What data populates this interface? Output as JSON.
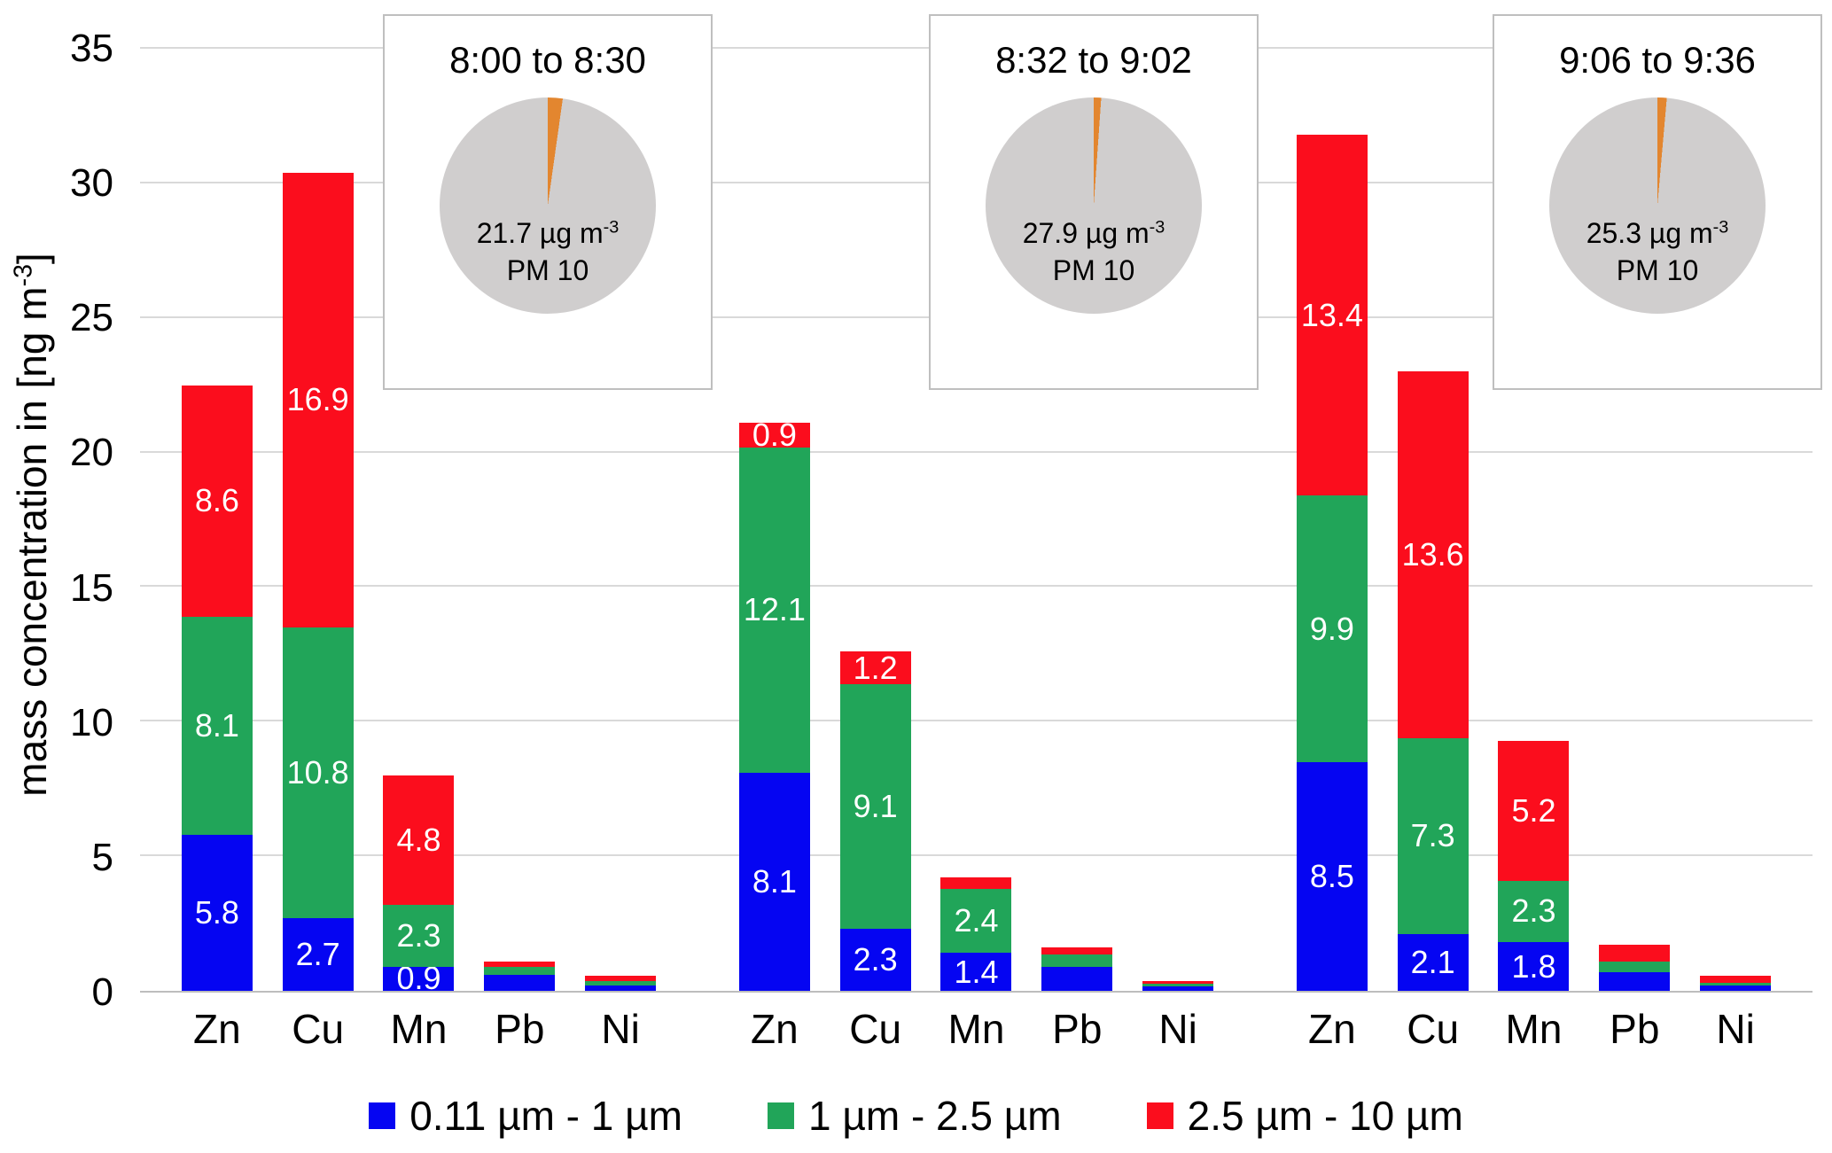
{
  "chart_data": {
    "type": "bar",
    "stacked": true,
    "ylabel": {
      "pre": "mass concentration in [ng m",
      "sup": "-3",
      "post": "]"
    },
    "ymax": 35,
    "yticks": [
      0,
      5,
      10,
      15,
      20,
      25,
      30,
      35
    ],
    "grid": true,
    "legend_position": "bottom",
    "series": [
      {
        "name": "0.11 µm - 1 µm",
        "color": "#0505f2"
      },
      {
        "name": "1 µm - 2.5 µm",
        "color": "#21a559"
      },
      {
        "name": "2.5 µm - 10 µm",
        "color": "#fb0d1d"
      }
    ],
    "groups": [
      {
        "title": "8:00 to 8:30",
        "pie": {
          "value": "21.7 µg m",
          "value_sup": "-3",
          "label": "PM 10",
          "slice_deg": 8,
          "slice_color": "#e3862f",
          "body_color": "#d0cece"
        },
        "bars": [
          {
            "category": "Zn",
            "values": [
              5.8,
              8.1,
              8.6
            ],
            "labels": [
              "5.8",
              "8.1",
              "8.6"
            ]
          },
          {
            "category": "Cu",
            "values": [
              2.7,
              10.8,
              16.9
            ],
            "labels": [
              "2.7",
              "10.8",
              "16.9"
            ]
          },
          {
            "category": "Mn",
            "values": [
              0.9,
              2.3,
              4.8
            ],
            "labels": [
              "0.9",
              "2.3",
              "4.8"
            ]
          },
          {
            "category": "Pb",
            "values": [
              0.6,
              0.3,
              0.2
            ],
            "labels": [
              "",
              "",
              ""
            ]
          },
          {
            "category": "Ni",
            "values": [
              0.2,
              0.15,
              0.2
            ],
            "labels": [
              "",
              "",
              ""
            ]
          }
        ]
      },
      {
        "title": "8:32 to 9:02",
        "pie": {
          "value": "27.9 µg m",
          "value_sup": "-3",
          "label": "PM 10",
          "slice_deg": 4,
          "slice_color": "#e3862f",
          "body_color": "#d0cece"
        },
        "bars": [
          {
            "category": "Zn",
            "values": [
              8.1,
              12.1,
              0.9
            ],
            "labels": [
              "8.1",
              "12.1",
              "0.9"
            ]
          },
          {
            "category": "Cu",
            "values": [
              2.3,
              9.1,
              1.2
            ],
            "labels": [
              "2.3",
              "9.1",
              "1.2"
            ]
          },
          {
            "category": "Mn",
            "values": [
              1.4,
              2.4,
              0.4
            ],
            "labels": [
              "1.4",
              "2.4",
              ""
            ]
          },
          {
            "category": "Pb",
            "values": [
              0.9,
              0.45,
              0.25
            ],
            "labels": [
              "",
              "",
              ""
            ]
          },
          {
            "category": "Ni",
            "values": [
              0.15,
              0.1,
              0.1
            ],
            "labels": [
              "",
              "",
              ""
            ]
          }
        ]
      },
      {
        "title": "9:06 to 9:36",
        "pie": {
          "value": "25.3 µg m",
          "value_sup": "-3",
          "label": "PM 10",
          "slice_deg": 5,
          "slice_color": "#e3862f",
          "body_color": "#d0cece"
        },
        "bars": [
          {
            "category": "Zn",
            "values": [
              8.5,
              9.9,
              13.4
            ],
            "labels": [
              "8.5",
              "9.9",
              "13.4"
            ]
          },
          {
            "category": "Cu",
            "values": [
              2.1,
              7.3,
              13.6
            ],
            "labels": [
              "2.1",
              "7.3",
              "13.6"
            ]
          },
          {
            "category": "Mn",
            "values": [
              1.8,
              2.3,
              5.2
            ],
            "labels": [
              "1.8",
              "2.3",
              "5.2"
            ]
          },
          {
            "category": "Pb",
            "values": [
              0.7,
              0.4,
              0.6
            ],
            "labels": [
              "",
              "",
              ""
            ]
          },
          {
            "category": "Ni",
            "values": [
              0.2,
              0.1,
              0.25
            ],
            "labels": [
              "",
              "",
              ""
            ]
          }
        ]
      }
    ]
  }
}
